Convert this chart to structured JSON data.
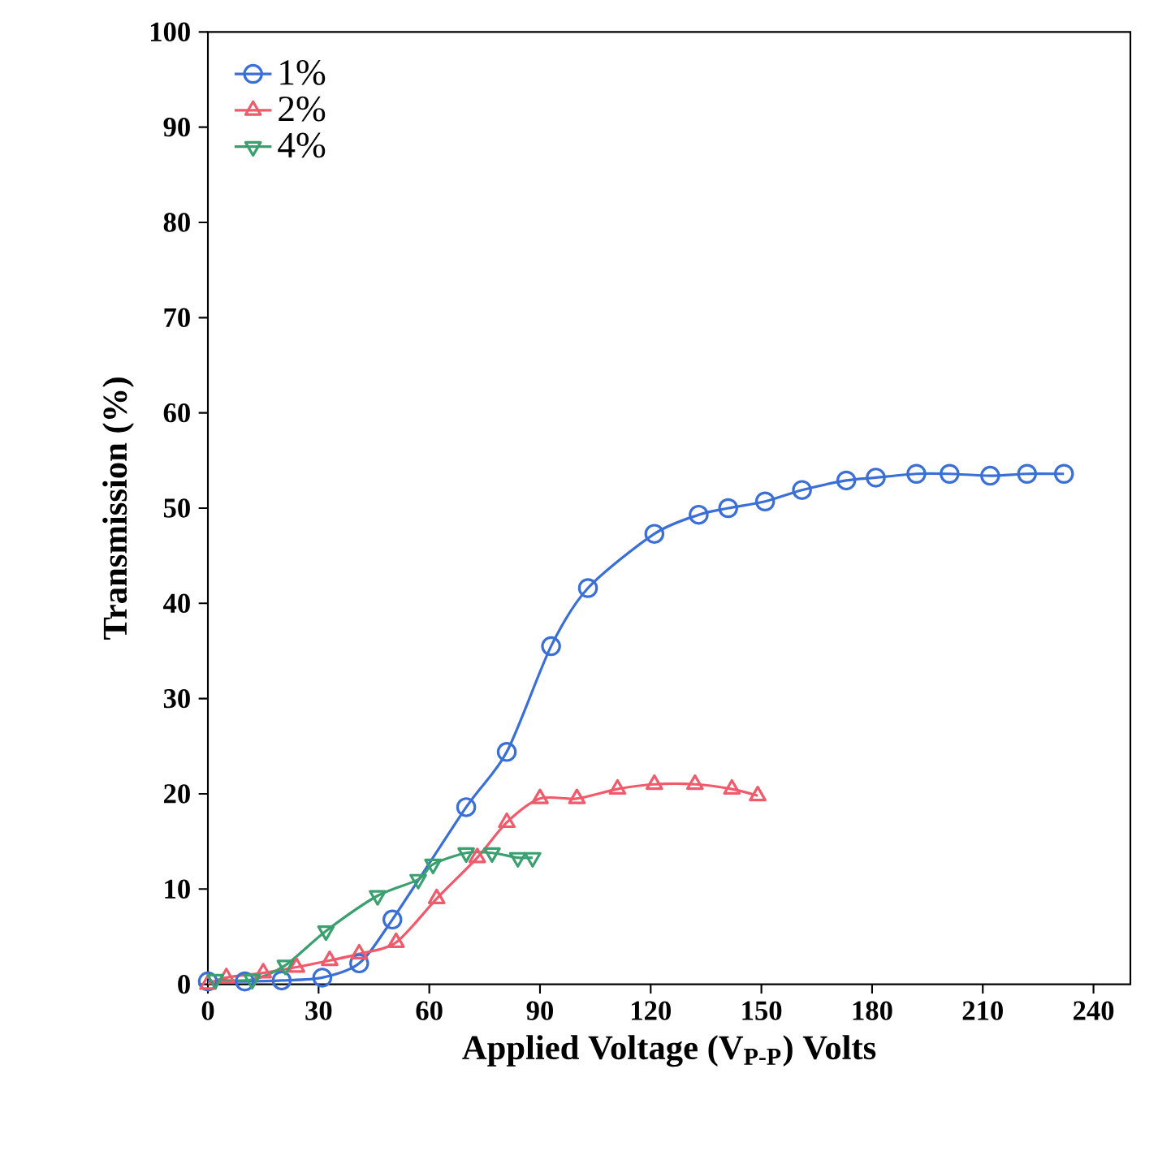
{
  "chart_data": {
    "type": "line",
    "xlabel": "Applied Voltage (V$_{P-P}$) Volts",
    "ylabel": "Transmission (%)",
    "xlim": [
      0,
      250
    ],
    "xticks": [
      0,
      30,
      60,
      90,
      120,
      150,
      180,
      210,
      240
    ],
    "ylim": [
      0,
      100
    ],
    "yticks": [
      0,
      10,
      20,
      30,
      40,
      50,
      60,
      70,
      80,
      90,
      100
    ],
    "grid": false,
    "legend": "top left",
    "line_style": "solid",
    "series": [
      {
        "name": "1%",
        "color": "#3a6fd8",
        "marker": "circle",
        "x": [
          0,
          10,
          20,
          31,
          41,
          50,
          70,
          81,
          93,
          103,
          121,
          133,
          141,
          151,
          161,
          173,
          181,
          192,
          201,
          212,
          222,
          232
        ],
        "values": [
          0.3,
          0.3,
          0.4,
          0.7,
          2.2,
          6.8,
          18.6,
          24.4,
          35.5,
          41.6,
          47.3,
          49.3,
          50,
          50.7,
          51.9,
          52.9,
          53.2,
          53.6,
          53.6,
          53.4,
          53.6,
          53.6
        ]
      },
      {
        "name": "2%",
        "color": "#f05a6a",
        "marker": "triangle",
        "x": [
          0,
          5,
          15,
          24,
          33,
          41,
          51,
          62,
          73,
          81,
          90,
          100,
          111,
          121,
          132,
          142,
          149
        ],
        "values": [
          0,
          0.7,
          1.2,
          1.8,
          2.5,
          3.2,
          4.4,
          9,
          13.3,
          17,
          19.5,
          19.5,
          20.5,
          21,
          21,
          20.5,
          19.8
        ]
      },
      {
        "name": "4%",
        "color": "#3aa070",
        "marker": "triangle-down",
        "x": [
          2,
          12,
          21,
          32,
          46,
          57,
          61,
          70,
          77,
          84,
          88
        ],
        "values": [
          0.5,
          0.5,
          2,
          5.6,
          9.3,
          11,
          12.6,
          13.8,
          13.8,
          13.3,
          13.3
        ]
      }
    ]
  }
}
